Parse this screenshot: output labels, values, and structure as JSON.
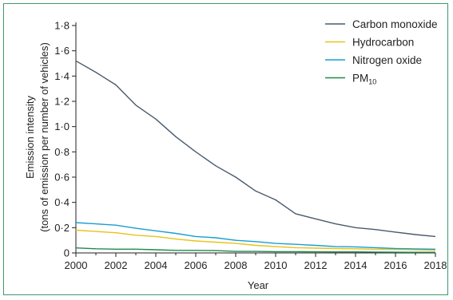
{
  "chart_data": {
    "type": "line",
    "xlabel": "Year",
    "ylabel_line1": "Emission intensity",
    "ylabel_line2": "(tons of emission per number of vehicles)",
    "xlim": [
      2000,
      2018
    ],
    "ylim": [
      0,
      1.8
    ],
    "x_ticks": [
      2000,
      2002,
      2004,
      2006,
      2008,
      2010,
      2012,
      2014,
      2016,
      2018
    ],
    "x_tick_labels": [
      "2000",
      "2002",
      "2004",
      "2006",
      "2008",
      "2010",
      "2012",
      "2014",
      "2016",
      "2018"
    ],
    "y_ticks": [
      0,
      0.2,
      0.4,
      0.6,
      0.8,
      1.0,
      1.2,
      1.4,
      1.6,
      1.8
    ],
    "y_tick_labels": [
      "0",
      "0·2",
      "0·4",
      "0·6",
      "0·8",
      "1·0",
      "1·2",
      "1·4",
      "1·6",
      "1·8"
    ],
    "grid": false,
    "legend_position": "top-right",
    "x": [
      2000,
      2001,
      2002,
      2003,
      2004,
      2005,
      2006,
      2007,
      2008,
      2009,
      2010,
      2011,
      2012,
      2013,
      2014,
      2015,
      2016,
      2017,
      2018
    ],
    "series": [
      {
        "name": "Carbon monoxide",
        "color": "#4a5a6b",
        "values": [
          1.52,
          1.43,
          1.33,
          1.17,
          1.06,
          0.92,
          0.8,
          0.69,
          0.6,
          0.49,
          0.42,
          0.31,
          0.27,
          0.23,
          0.2,
          0.185,
          0.165,
          0.145,
          0.13
        ]
      },
      {
        "name": "Hydrocarbon",
        "color": "#e8c21a",
        "values": [
          0.18,
          0.17,
          0.16,
          0.14,
          0.13,
          0.11,
          0.095,
          0.085,
          0.075,
          0.06,
          0.05,
          0.042,
          0.038,
          0.035,
          0.033,
          0.03,
          0.028,
          0.025,
          0.022
        ]
      },
      {
        "name": "Nitrogen oxide",
        "color": "#1a9ed0",
        "values": [
          0.24,
          0.23,
          0.22,
          0.195,
          0.175,
          0.155,
          0.13,
          0.12,
          0.1,
          0.09,
          0.075,
          0.068,
          0.06,
          0.05,
          0.048,
          0.042,
          0.035,
          0.032,
          0.03
        ]
      },
      {
        "name": "PM",
        "name_sub": "10",
        "color": "#1f8a4c",
        "values": [
          0.04,
          0.033,
          0.03,
          0.03,
          0.025,
          0.02,
          0.02,
          0.018,
          0.012,
          0.012,
          0.01,
          0.01,
          0.009,
          0.008,
          0.008,
          0.007,
          0.006,
          0.005,
          0.005
        ]
      }
    ]
  }
}
